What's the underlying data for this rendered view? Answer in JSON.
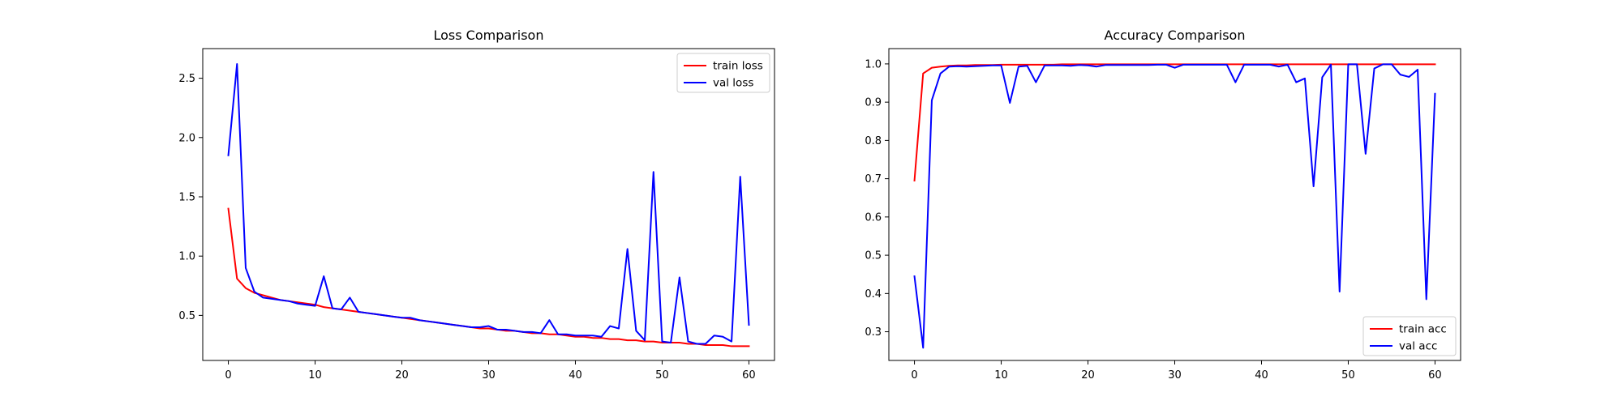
{
  "chart_data": [
    {
      "type": "line",
      "title": "Loss Comparison",
      "xlabel": "",
      "ylabel": "",
      "xlim": [
        -2.95,
        62.95
      ],
      "ylim": [
        0.12,
        2.75
      ],
      "xticks": [
        0,
        10,
        20,
        30,
        40,
        50,
        60
      ],
      "yticks": [
        0.5,
        1.0,
        1.5,
        2.0,
        2.5
      ],
      "ytick_labels": [
        "0.5",
        "1.0",
        "1.5",
        "2.0",
        "2.5"
      ],
      "grid": false,
      "legend_position": "top-right",
      "series": [
        {
          "name": "train loss",
          "color": "#ff0000",
          "x": [
            0,
            1,
            2,
            3,
            4,
            5,
            6,
            7,
            8,
            9,
            10,
            11,
            12,
            13,
            14,
            15,
            16,
            17,
            18,
            19,
            20,
            21,
            22,
            23,
            24,
            25,
            26,
            27,
            28,
            29,
            30,
            31,
            32,
            33,
            34,
            35,
            36,
            37,
            38,
            39,
            40,
            41,
            42,
            43,
            44,
            45,
            46,
            47,
            48,
            49,
            50,
            51,
            52,
            53,
            54,
            55,
            56,
            57,
            58,
            59,
            60
          ],
          "y": [
            1.4,
            0.81,
            0.73,
            0.69,
            0.67,
            0.65,
            0.63,
            0.62,
            0.61,
            0.6,
            0.59,
            0.57,
            0.56,
            0.55,
            0.54,
            0.53,
            0.52,
            0.51,
            0.5,
            0.49,
            0.48,
            0.47,
            0.46,
            0.45,
            0.44,
            0.43,
            0.42,
            0.41,
            0.4,
            0.39,
            0.39,
            0.38,
            0.37,
            0.37,
            0.36,
            0.35,
            0.35,
            0.34,
            0.34,
            0.33,
            0.32,
            0.32,
            0.31,
            0.31,
            0.3,
            0.3,
            0.29,
            0.29,
            0.28,
            0.28,
            0.27,
            0.27,
            0.27,
            0.26,
            0.26,
            0.25,
            0.25,
            0.25,
            0.24,
            0.24,
            0.24
          ]
        },
        {
          "name": "val loss",
          "color": "#0000ff",
          "x": [
            0,
            1,
            2,
            3,
            4,
            5,
            6,
            7,
            8,
            9,
            10,
            11,
            12,
            13,
            14,
            15,
            16,
            17,
            18,
            19,
            20,
            21,
            22,
            23,
            24,
            25,
            26,
            27,
            28,
            29,
            30,
            31,
            32,
            33,
            34,
            35,
            36,
            37,
            38,
            39,
            40,
            41,
            42,
            43,
            44,
            45,
            46,
            47,
            48,
            49,
            50,
            51,
            52,
            53,
            54,
            55,
            56,
            57,
            58,
            59,
            60
          ],
          "y": [
            1.85,
            2.62,
            0.9,
            0.7,
            0.65,
            0.64,
            0.63,
            0.62,
            0.6,
            0.59,
            0.58,
            0.83,
            0.56,
            0.55,
            0.65,
            0.53,
            0.52,
            0.51,
            0.5,
            0.49,
            0.48,
            0.48,
            0.46,
            0.45,
            0.44,
            0.43,
            0.42,
            0.41,
            0.4,
            0.4,
            0.41,
            0.38,
            0.38,
            0.37,
            0.36,
            0.36,
            0.35,
            0.46,
            0.34,
            0.34,
            0.33,
            0.33,
            0.33,
            0.32,
            0.41,
            0.39,
            1.06,
            0.37,
            0.29,
            1.71,
            0.28,
            0.27,
            0.82,
            0.28,
            0.26,
            0.26,
            0.33,
            0.32,
            0.28,
            1.67,
            0.42
          ]
        }
      ]
    },
    {
      "type": "line",
      "title": "Accuracy Comparison",
      "xlabel": "",
      "ylabel": "",
      "xlim": [
        -2.95,
        62.95
      ],
      "ylim": [
        0.225,
        1.04
      ],
      "xticks": [
        0,
        10,
        20,
        30,
        40,
        50,
        60
      ],
      "yticks": [
        0.3,
        0.4,
        0.5,
        0.6,
        0.7,
        0.8,
        0.9,
        1.0
      ],
      "ytick_labels": [
        "0.3",
        "0.4",
        "0.5",
        "0.6",
        "0.7",
        "0.8",
        "0.9",
        "1.0"
      ],
      "grid": false,
      "legend_position": "bottom-right",
      "series": [
        {
          "name": "train acc",
          "color": "#ff0000",
          "x": [
            0,
            1,
            2,
            3,
            4,
            5,
            6,
            7,
            8,
            9,
            10,
            11,
            12,
            13,
            14,
            15,
            16,
            17,
            18,
            19,
            20,
            21,
            22,
            23,
            24,
            25,
            26,
            27,
            28,
            29,
            30,
            31,
            32,
            33,
            34,
            35,
            36,
            37,
            38,
            39,
            40,
            41,
            42,
            43,
            44,
            45,
            46,
            47,
            48,
            49,
            50,
            51,
            52,
            53,
            54,
            55,
            56,
            57,
            58,
            59,
            60
          ],
          "y": [
            0.695,
            0.975,
            0.99,
            0.993,
            0.995,
            0.996,
            0.996,
            0.997,
            0.997,
            0.997,
            0.998,
            0.998,
            0.998,
            0.998,
            0.998,
            0.998,
            0.998,
            0.999,
            0.999,
            0.999,
            0.999,
            0.999,
            0.999,
            0.999,
            0.999,
            0.999,
            0.999,
            0.999,
            0.999,
            0.999,
            0.999,
            0.999,
            0.999,
            0.999,
            0.999,
            0.999,
            0.999,
            0.999,
            0.999,
            0.999,
            0.999,
            0.999,
            0.999,
            0.999,
            0.999,
            0.999,
            0.999,
            0.999,
            0.999,
            0.999,
            0.999,
            0.999,
            0.999,
            0.999,
            0.999,
            0.999,
            0.999,
            0.999,
            0.999,
            0.999,
            0.999
          ]
        },
        {
          "name": "val acc",
          "color": "#0000ff",
          "x": [
            0,
            1,
            2,
            3,
            4,
            5,
            6,
            7,
            8,
            9,
            10,
            11,
            12,
            13,
            14,
            15,
            16,
            17,
            18,
            19,
            20,
            21,
            22,
            23,
            24,
            25,
            26,
            27,
            28,
            29,
            30,
            31,
            32,
            33,
            34,
            35,
            36,
            37,
            38,
            39,
            40,
            41,
            42,
            43,
            44,
            45,
            46,
            47,
            48,
            49,
            50,
            51,
            52,
            53,
            54,
            55,
            56,
            57,
            58,
            59,
            60
          ],
          "y": [
            0.445,
            0.258,
            0.905,
            0.975,
            0.993,
            0.994,
            0.993,
            0.994,
            0.995,
            0.996,
            0.996,
            0.898,
            0.993,
            0.995,
            0.952,
            0.996,
            0.996,
            0.996,
            0.995,
            0.997,
            0.996,
            0.993,
            0.997,
            0.997,
            0.997,
            0.997,
            0.997,
            0.997,
            0.998,
            0.998,
            0.99,
            0.998,
            0.998,
            0.998,
            0.998,
            0.998,
            0.998,
            0.952,
            0.998,
            0.998,
            0.998,
            0.998,
            0.993,
            0.998,
            0.952,
            0.962,
            0.68,
            0.965,
            0.998,
            0.405,
            0.999,
            0.999,
            0.765,
            0.988,
            0.999,
            0.999,
            0.972,
            0.966,
            0.985,
            0.385,
            0.922
          ]
        }
      ]
    }
  ]
}
